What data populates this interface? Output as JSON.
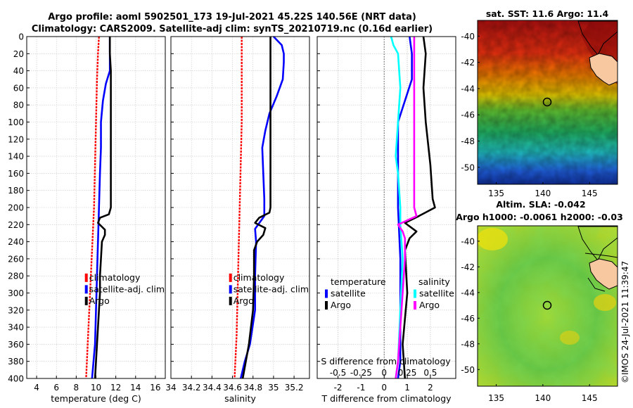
{
  "header": {
    "line1": "Argo profile: aoml 5902501_173 19-Jul-2021 45.22S 140.56E (NRT data)",
    "line2": "Climatology: CARS2009. Satellite-adj clim: synTS_20210719.nc (0.16d earlier)"
  },
  "credit": "©IMOS 24-Jul-2021 11:39:47",
  "chart_data": [
    {
      "type": "line",
      "id": "temperature",
      "xlabel": "temperature (deg C)",
      "ylabel": "",
      "xlim": [
        3,
        17
      ],
      "ylim": [
        400,
        0
      ],
      "xticks": [
        4,
        6,
        8,
        10,
        12,
        14,
        16
      ],
      "yticks": [
        0,
        20,
        40,
        60,
        80,
        100,
        120,
        140,
        160,
        180,
        200,
        220,
        240,
        260,
        280,
        300,
        320,
        340,
        360,
        380,
        400
      ],
      "grid": true,
      "legend": [
        "climatology",
        "satellite-adj. clim",
        "Argo"
      ],
      "legend_position": "lower-right",
      "series": [
        {
          "name": "climatology",
          "color": "#ff0000",
          "depth": [
            0,
            20,
            50,
            100,
            150,
            200,
            250,
            300,
            350,
            400
          ],
          "values": [
            10.3,
            10.2,
            10.1,
            10.0,
            9.9,
            9.8,
            9.6,
            9.4,
            9.2,
            9.0
          ]
        },
        {
          "name": "satellite-adj. clim",
          "color": "#0000ff",
          "depth": [
            0,
            20,
            40,
            55,
            75,
            100,
            130,
            160,
            200,
            240,
            280,
            320,
            360,
            400
          ],
          "values": [
            11.4,
            11.4,
            11.4,
            11.0,
            10.7,
            10.5,
            10.5,
            10.4,
            10.3,
            10.2,
            10.1,
            10.0,
            9.9,
            9.6
          ]
        },
        {
          "name": "Argo",
          "color": "#000000",
          "depth": [
            0,
            20,
            40,
            60,
            100,
            150,
            200,
            208,
            212,
            218,
            226,
            232,
            240,
            260,
            280,
            300,
            320,
            340,
            360,
            380,
            400
          ],
          "values": [
            11.4,
            11.4,
            11.5,
            11.5,
            11.5,
            11.5,
            11.5,
            11.3,
            10.4,
            10.2,
            10.9,
            10.9,
            10.6,
            10.5,
            10.4,
            10.4,
            10.3,
            10.2,
            10.1,
            10.0,
            9.9
          ]
        }
      ]
    },
    {
      "type": "line",
      "id": "salinity",
      "xlabel": "salinity",
      "ylabel": "",
      "xlim": [
        34,
        35.35
      ],
      "ylim": [
        400,
        0
      ],
      "xticks": [
        34,
        34.2,
        34.4,
        34.6,
        34.8,
        35,
        35.2
      ],
      "xticklabels": [
        "34",
        "34.2",
        "34.4",
        "34.6",
        "34.8",
        "35",
        "35.2"
      ],
      "grid": true,
      "legend": [
        "climatology",
        "satellite-adj. clim",
        "Argo"
      ],
      "legend_position": "lower-right",
      "series": [
        {
          "name": "climatology",
          "color": "#ff0000",
          "depth": [
            0,
            50,
            100,
            150,
            200,
            250,
            300,
            350,
            400
          ],
          "values": [
            34.69,
            34.69,
            34.69,
            34.68,
            34.67,
            34.66,
            34.65,
            34.64,
            34.62
          ]
        },
        {
          "name": "satellite-adj. clim",
          "color": "#0000ff",
          "depth": [
            0,
            10,
            20,
            30,
            50,
            70,
            90,
            110,
            130,
            160,
            190,
            210,
            225,
            240,
            280,
            320,
            360,
            380,
            400
          ],
          "values": [
            35.0,
            35.08,
            35.1,
            35.1,
            35.09,
            35.03,
            34.96,
            34.92,
            34.89,
            34.9,
            34.91,
            34.91,
            34.82,
            34.83,
            34.82,
            34.82,
            34.77,
            34.72,
            34.68
          ]
        },
        {
          "name": "Argo",
          "color": "#000000",
          "depth": [
            0,
            20,
            60,
            100,
            150,
            200,
            206,
            212,
            218,
            224,
            232,
            240,
            250,
            280,
            320,
            360,
            400
          ],
          "values": [
            34.97,
            34.97,
            34.97,
            34.97,
            34.97,
            34.97,
            34.96,
            34.86,
            34.82,
            34.92,
            34.9,
            34.84,
            34.81,
            34.81,
            34.8,
            34.76,
            34.7
          ]
        }
      ]
    },
    {
      "type": "line",
      "id": "differences",
      "xlabel": "T difference from climatology",
      "xlabel_top": "S difference from climatology",
      "xlim": [
        -2.9,
        3.1
      ],
      "ylim": [
        400,
        0
      ],
      "xticks": [
        -2,
        -1,
        0,
        1,
        2
      ],
      "xticklabels": [
        "-2",
        "-1",
        "0",
        "1",
        "2"
      ],
      "xticks_top": [
        -0.5,
        -0.25,
        0,
        0.25,
        0.5
      ],
      "xticklabels_top": [
        "-0.5",
        "-0.25",
        "0",
        "0.25",
        "0.5"
      ],
      "grid": true,
      "legend_temperature": [
        "temperature",
        "satellite",
        "Argo"
      ],
      "legend_salinity": [
        "salinity",
        "satellite",
        "Argo"
      ],
      "series": [
        {
          "name": "T satellite",
          "color": "#0000ff",
          "depth": [
            0,
            20,
            50,
            75,
            100,
            150,
            200,
            260,
            320,
            380,
            400
          ],
          "values": [
            1.1,
            1.2,
            1.2,
            0.9,
            0.6,
            0.6,
            0.6,
            0.7,
            0.7,
            0.7,
            0.6
          ]
        },
        {
          "name": "T Argo",
          "color": "#000000",
          "depth": [
            0,
            20,
            60,
            100,
            150,
            190,
            200,
            210,
            218,
            228,
            236,
            250,
            300,
            360,
            400
          ],
          "values": [
            1.7,
            1.8,
            1.7,
            1.8,
            2.0,
            2.1,
            2.2,
            1.5,
            0.9,
            1.4,
            1.1,
            0.9,
            1.0,
            0.8,
            0.9
          ]
        },
        {
          "name": "S satellite",
          "color": "#00ffff",
          "depth": [
            0,
            10,
            20,
            60,
            100,
            140,
            160,
            200,
            220,
            260,
            320,
            380,
            400
          ],
          "values": [
            0.3,
            0.4,
            0.6,
            0.7,
            0.6,
            0.5,
            0.6,
            0.7,
            0.7,
            0.8,
            0.7,
            0.6,
            0.5
          ]
        },
        {
          "name": "S Argo",
          "color": "#ff00ff",
          "depth": [
            0,
            50,
            100,
            150,
            200,
            210,
            220,
            228,
            236,
            260,
            300,
            340,
            380,
            400
          ],
          "values": [
            1.3,
            1.3,
            1.3,
            1.3,
            1.3,
            1.4,
            0.6,
            0.8,
            0.9,
            0.9,
            0.8,
            0.7,
            0.6,
            0.5
          ]
        }
      ]
    },
    {
      "type": "heatmap",
      "id": "sst-map",
      "title": "sat. SST: 11.6 Argo: 11.4",
      "xlim": [
        133,
        148
      ],
      "ylim": [
        -51.3,
        -38.8
      ],
      "xticks": [
        135,
        140,
        145
      ],
      "yticks": [
        -40,
        -42,
        -44,
        -46,
        -48,
        -50
      ],
      "marker": {
        "lon": 140.56,
        "lat": -45.22
      }
    },
    {
      "type": "heatmap",
      "id": "sla-map",
      "title": "Altim. SLA: -0.042",
      "subtitle": "Argo h1000: -0.0061 h2000: -0.03",
      "xlim": [
        133,
        148
      ],
      "ylim": [
        -51.3,
        -38.8
      ],
      "xticks": [
        135,
        140,
        145
      ],
      "yticks": [
        -40,
        -42,
        -44,
        -46,
        -48,
        -50
      ],
      "marker": {
        "lon": 140.56,
        "lat": -45.22
      }
    }
  ]
}
